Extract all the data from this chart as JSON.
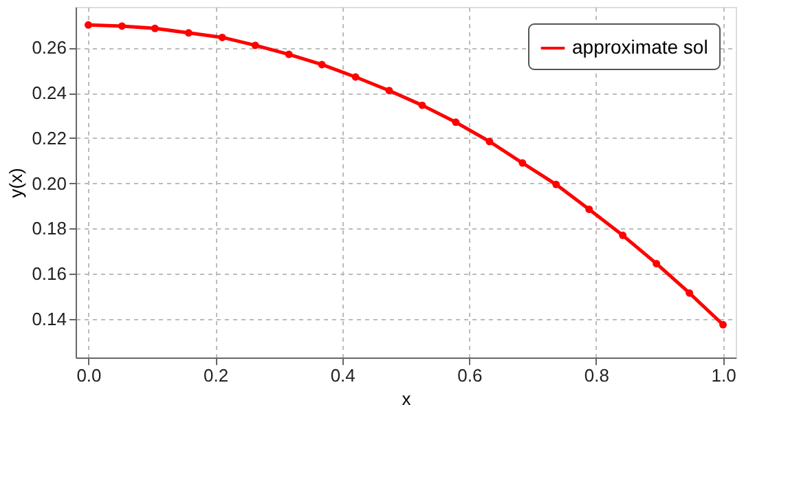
{
  "chart_data": {
    "type": "line",
    "xlabel": "x",
    "ylabel": "y(x)",
    "x": [
      0,
      0.053,
      0.105,
      0.158,
      0.211,
      0.263,
      0.316,
      0.368,
      0.421,
      0.474,
      0.526,
      0.579,
      0.632,
      0.684,
      0.737,
      0.789,
      0.842,
      0.895,
      0.947,
      1.0
    ],
    "series": [
      {
        "name": "approximate sol",
        "color": "#ff0000",
        "values": [
          0.27,
          0.2695,
          0.2685,
          0.2665,
          0.2645,
          0.261,
          0.257,
          0.2525,
          0.247,
          0.241,
          0.2345,
          0.227,
          0.2185,
          0.209,
          0.1995,
          0.1885,
          0.177,
          0.1645,
          0.1515,
          0.1375
        ]
      }
    ],
    "xlim": [
      -0.02,
      1.02
    ],
    "ylim": [
      0.123,
      0.278
    ],
    "xticks": [
      {
        "value": 0,
        "label": "0.0"
      },
      0.2,
      0.4,
      0.6,
      0.8,
      {
        "value": 1,
        "label": "1.0"
      }
    ],
    "yticks": [
      0.14,
      0.16,
      0.18,
      {
        "value": 0.2,
        "label": "0.20"
      },
      0.22,
      0.24,
      0.26
    ],
    "grid": true,
    "legend": "top right",
    "marker": "circle",
    "line_style": "solid"
  }
}
